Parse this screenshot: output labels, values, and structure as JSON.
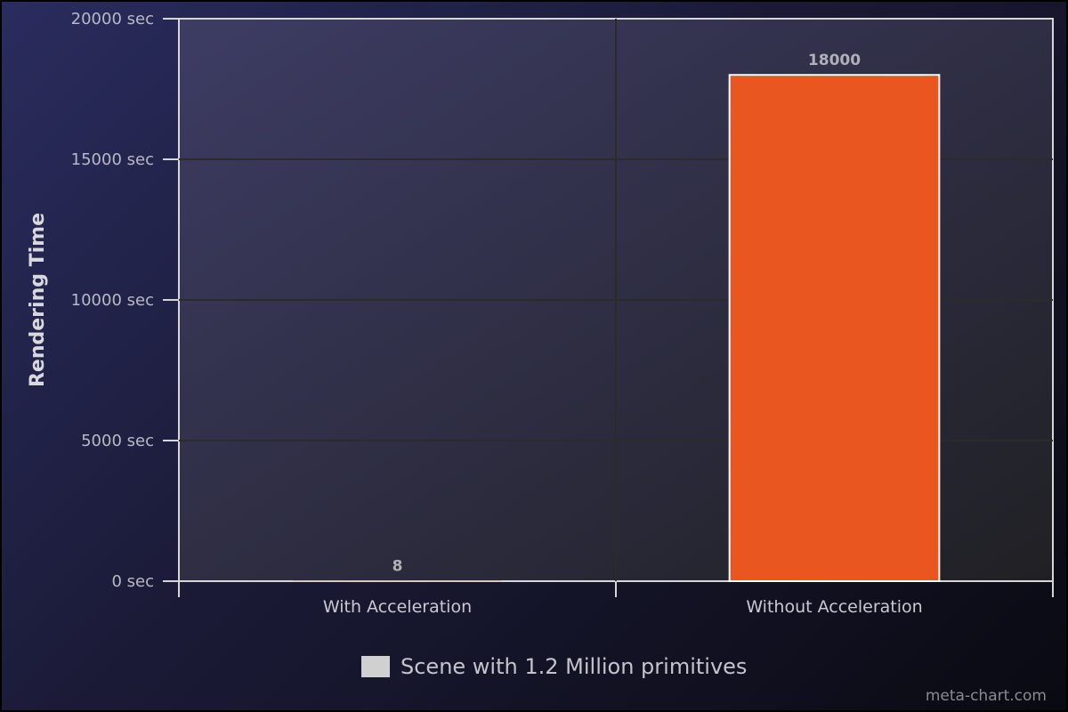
{
  "chart_data": {
    "type": "bar",
    "categories": [
      "With Acceleration",
      "Without Acceleration"
    ],
    "series": [
      {
        "name": "Scene with 1.2 Million primitives",
        "values": [
          8,
          18000
        ]
      }
    ],
    "data_labels": [
      "8",
      "18000"
    ],
    "ylabel": "Rendering Time",
    "ylim": [
      0,
      20000
    ],
    "yticks": [
      0,
      5000,
      10000,
      15000,
      20000
    ],
    "ytick_labels": [
      "0 sec",
      "5000 sec",
      "10000 sec",
      "15000 sec",
      "20000 sec"
    ],
    "grid": true,
    "legend": "bottom-center",
    "bar_color": "#ea561f",
    "legend_swatch_color": "#d0d0d0"
  },
  "credit": "meta-chart.com"
}
